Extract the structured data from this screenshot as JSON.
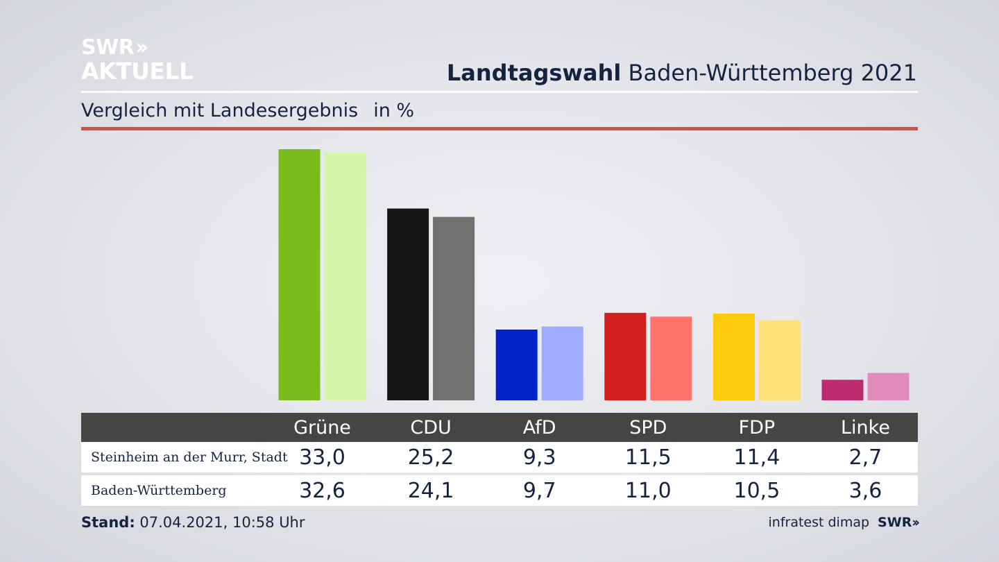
{
  "logo": {
    "line1": "SWR",
    "line2": "AKTUELL",
    "icon": "double-chevron-right-icon"
  },
  "header": {
    "title_bold": "Landtagswahl",
    "title_rest": "Baden-Württemberg 2021"
  },
  "subheader": {
    "text": "Vergleich mit Landesergebnis",
    "unit": "in %"
  },
  "chart_data": {
    "type": "bar",
    "categories": [
      "Grüne",
      "CDU",
      "AfD",
      "SPD",
      "FDP",
      "Linke"
    ],
    "series": [
      {
        "name": "Steinheim an der Murr, Stadt",
        "values": [
          33.0,
          25.2,
          9.3,
          11.5,
          11.4,
          2.7
        ]
      },
      {
        "name": "Baden-Württemberg",
        "values": [
          32.6,
          24.1,
          9.7,
          11.0,
          10.5,
          3.6
        ]
      }
    ],
    "display_values": [
      [
        "33,0",
        "25,2",
        "9,3",
        "11,5",
        "11,4",
        "2,7"
      ],
      [
        "32,6",
        "24,1",
        "9,7",
        "11,0",
        "10,5",
        "3,6"
      ]
    ],
    "colors": [
      [
        "#78bc1d",
        "#161616",
        "#0022c7",
        "#d41f1f",
        "#fdca0c",
        "#bd2a6e"
      ],
      [
        "#d4f4a8",
        "#727170",
        "#9fabff",
        "#ff756d",
        "#fde075",
        "#e08bba"
      ]
    ],
    "ylim": [
      0,
      33
    ],
    "grid": false,
    "legend": "table-below"
  },
  "footer": {
    "stand_label": "Stand:",
    "stand_value": "07.04.2021, 10:58 Uhr",
    "source": "infratest dimap",
    "brand": "SWR",
    "brand_icon": "double-chevron-right-icon"
  }
}
